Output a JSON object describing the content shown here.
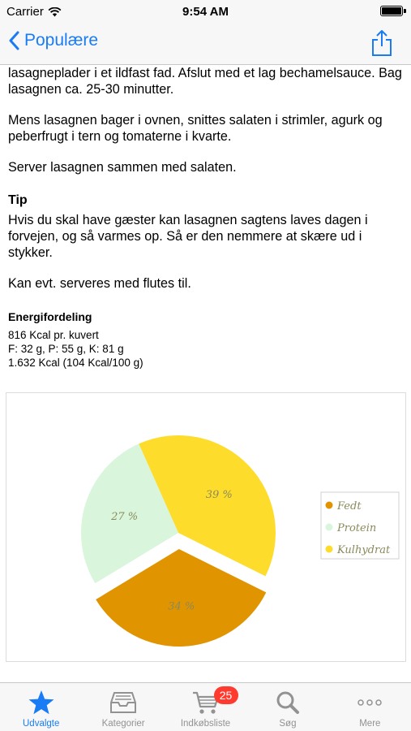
{
  "status_bar": {
    "carrier": "Carrier",
    "time": "9:54 AM"
  },
  "nav": {
    "back_label": "Populære",
    "back_icon": "chevron-left-icon",
    "share_icon": "share-icon"
  },
  "content": {
    "para1": "lasagneplader i et ildfast fad. Afslut med et lag bechamelsauce. Bag lasagnen ca. 25-30 minutter.",
    "para2": "Mens lasagnen bager i ovnen, snittes salaten i strimler, agurk og peberfrugt i tern og tomaterne i kvarte.",
    "para3": "Server lasagnen sammen med salaten.",
    "tip_heading": "Tip",
    "tip_para1": "Hvis du skal have gæster kan lasagnen sagtens laves dagen i forvejen, og så varmes op. Så er den nemmere at skære ud i stykker.",
    "tip_para2": "Kan evt. serveres med flutes til.",
    "energy_heading": "Energifordeling",
    "energy_line1": "816 Kcal pr. kuvert",
    "energy_line2": "F: 32 g, P: 55 g, K: 81 g",
    "energy_line3": "1.632 Kcal (104 Kcal/100 g)"
  },
  "chart_data": {
    "type": "pie",
    "legend_position": "right",
    "slices": [
      {
        "name": "Fedt",
        "value": 34,
        "label": "34 %",
        "color": "#e09400",
        "exploded": true
      },
      {
        "name": "Protein",
        "value": 27,
        "label": "27 %",
        "color": "#d9f5dc",
        "exploded": false
      },
      {
        "name": "Kulhydrat",
        "value": 39,
        "label": "39 %",
        "color": "#fddc2b",
        "exploded": false
      }
    ]
  },
  "tab_bar": {
    "tabs": [
      {
        "label": "Udvalgte",
        "icon": "star-icon",
        "active": true
      },
      {
        "label": "Kategorier",
        "icon": "inbox-tray-icon",
        "active": false
      },
      {
        "label": "Indkøbsliste",
        "icon": "shopping-cart-icon",
        "active": false,
        "badge": "25"
      },
      {
        "label": "Søg",
        "icon": "search-icon",
        "active": false
      },
      {
        "label": "Mere",
        "icon": "more-dots-icon",
        "active": false
      }
    ]
  },
  "colors": {
    "accent": "#1a7cf5",
    "badge": "#ff3b30",
    "inactive": "#929292"
  }
}
